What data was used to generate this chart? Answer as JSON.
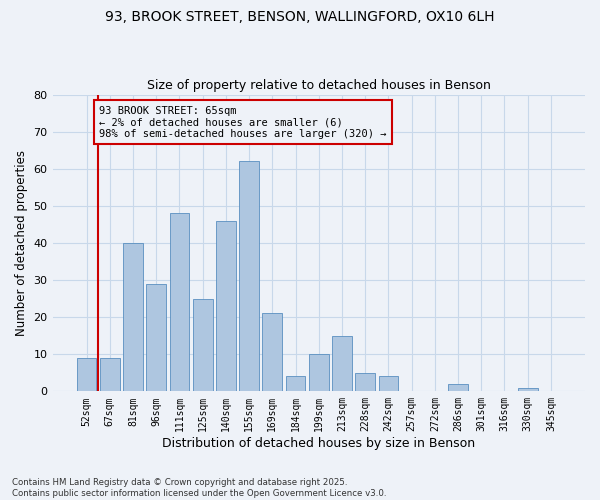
{
  "title_line1": "93, BROOK STREET, BENSON, WALLINGFORD, OX10 6LH",
  "title_line2": "Size of property relative to detached houses in Benson",
  "xlabel": "Distribution of detached houses by size in Benson",
  "ylabel": "Number of detached properties",
  "categories": [
    "52sqm",
    "67sqm",
    "81sqm",
    "96sqm",
    "111sqm",
    "125sqm",
    "140sqm",
    "155sqm",
    "169sqm",
    "184sqm",
    "199sqm",
    "213sqm",
    "228sqm",
    "242sqm",
    "257sqm",
    "272sqm",
    "286sqm",
    "301sqm",
    "316sqm",
    "330sqm",
    "345sqm"
  ],
  "values": [
    9,
    9,
    40,
    29,
    48,
    25,
    46,
    62,
    21,
    4,
    10,
    15,
    5,
    4,
    0,
    0,
    2,
    0,
    0,
    1,
    0
  ],
  "bar_color": "#aec6e0",
  "bar_edge_color": "#5a8fc0",
  "grid_color": "#c8d8ea",
  "background_color": "#eef2f8",
  "annotation_box_color": "#cc0000",
  "vline_color": "#cc0000",
  "annotation_text": "93 BROOK STREET: 65sqm\n← 2% of detached houses are smaller (6)\n98% of semi-detached houses are larger (320) →",
  "footnote_line1": "Contains HM Land Registry data © Crown copyright and database right 2025.",
  "footnote_line2": "Contains public sector information licensed under the Open Government Licence v3.0.",
  "ylim": [
    0,
    80
  ],
  "yticks": [
    0,
    10,
    20,
    30,
    40,
    50,
    60,
    70,
    80
  ]
}
